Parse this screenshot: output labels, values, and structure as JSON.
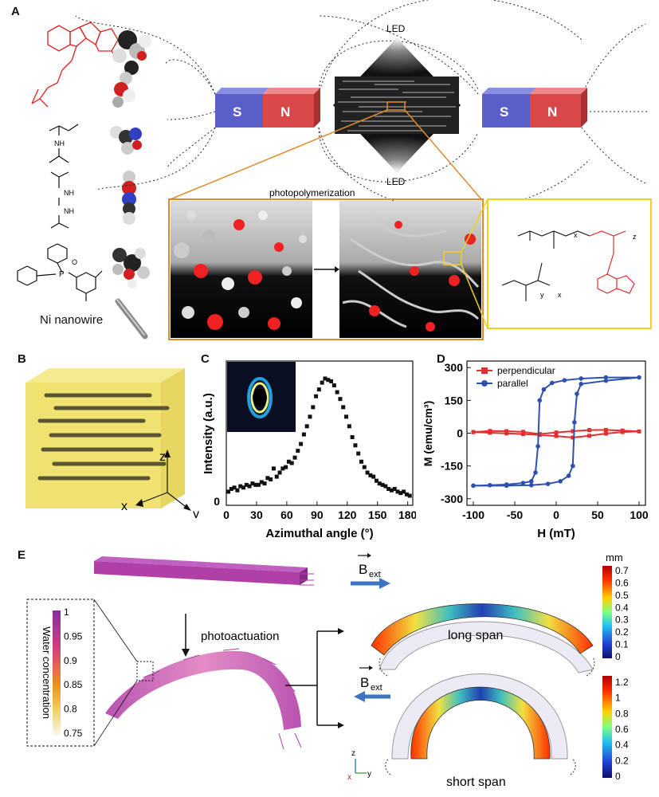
{
  "panel_labels": {
    "a": "A",
    "b": "B",
    "c": "C",
    "d": "D",
    "e": "E"
  },
  "panel_a": {
    "led_top": "LED",
    "led_bottom": "LED",
    "magnet_left": {
      "s": "S",
      "n": "N"
    },
    "magnet_right": {
      "s": "S",
      "n": "N"
    },
    "photopolymerization": "photopolymerization",
    "ni_nanowire": "Ni nanowire",
    "polymer_x1": "x",
    "polymer_z": "z",
    "polymer_y": "y",
    "polymer_x2": "x"
  },
  "panel_b": {
    "axis_z": "z",
    "axis_x": "x",
    "axis_y": "y"
  },
  "chart_data": [
    {
      "panel": "C",
      "type": "scatter",
      "xlabel": "Azimuthal angle (°)",
      "ylabel": "Intensity (a.u.)",
      "ytick_label": "0",
      "xlim": [
        0,
        185
      ],
      "ylim": [
        0,
        1
      ],
      "xticks": [
        "0",
        "30",
        "60",
        "90",
        "120",
        "150",
        "180"
      ],
      "x": [
        2,
        5,
        8,
        11,
        14,
        17,
        20,
        23,
        26,
        29,
        32,
        35,
        38,
        41,
        44,
        47,
        50,
        53,
        56,
        59,
        62,
        65,
        68,
        71,
        74,
        77,
        80,
        83,
        86,
        89,
        92,
        95,
        98,
        101,
        104,
        107,
        110,
        113,
        116,
        119,
        122,
        125,
        128,
        131,
        134,
        137,
        140,
        143,
        146,
        149,
        152,
        155,
        158,
        161,
        164,
        167,
        170,
        173,
        176,
        179,
        182
      ],
      "y": [
        0.1,
        0.12,
        0.13,
        0.11,
        0.14,
        0.13,
        0.15,
        0.14,
        0.16,
        0.15,
        0.15,
        0.17,
        0.16,
        0.2,
        0.19,
        0.27,
        0.21,
        0.24,
        0.27,
        0.28,
        0.32,
        0.31,
        0.35,
        0.4,
        0.45,
        0.52,
        0.58,
        0.65,
        0.72,
        0.8,
        0.85,
        0.9,
        0.93,
        0.92,
        0.91,
        0.88,
        0.83,
        0.78,
        0.72,
        0.65,
        0.58,
        0.5,
        0.44,
        0.38,
        0.32,
        0.28,
        0.24,
        0.22,
        0.21,
        0.18,
        0.16,
        0.15,
        0.14,
        0.12,
        0.11,
        0.12,
        0.1,
        0.09,
        0.1,
        0.08,
        0.07
      ]
    },
    {
      "panel": "D",
      "type": "line",
      "xlabel": "H (mT)",
      "ylabel": "M (emu/cm³)",
      "xlim": [
        -100,
        100
      ],
      "ylim": [
        -330,
        330
      ],
      "xticks": [
        "-100",
        "-50",
        "0",
        "50",
        "100"
      ],
      "yticks": [
        "300",
        "150",
        "0",
        "-150",
        "-300"
      ],
      "series": [
        {
          "name": "perpendicular",
          "color": "#e03030",
          "x": [
            -100,
            -80,
            -60,
            -40,
            -20,
            0,
            20,
            40,
            60,
            80,
            100,
            80,
            60,
            40,
            20,
            0,
            -20,
            -40,
            -60,
            -80,
            -100
          ],
          "y": [
            5,
            2,
            -1,
            -4,
            -8,
            -13,
            -20,
            -12,
            -2,
            5,
            8,
            12,
            15,
            14,
            9,
            3,
            -4,
            6,
            9,
            10,
            5
          ]
        },
        {
          "name": "parallel",
          "color": "#3050b0",
          "x": [
            -100,
            -80,
            -60,
            -40,
            -30,
            -25,
            -22,
            -20,
            -15,
            -5,
            10,
            30,
            60,
            100,
            60,
            30,
            25,
            22,
            20,
            15,
            5,
            -10,
            -30,
            -60,
            -100
          ],
          "y": [
            -240,
            -238,
            -235,
            -228,
            -220,
            -180,
            -60,
            150,
            200,
            230,
            242,
            250,
            255,
            255,
            240,
            225,
            180,
            50,
            -150,
            -195,
            -220,
            -232,
            -238,
            -240,
            -240
          ]
        }
      ]
    }
  ],
  "panel_e": {
    "b_ext_top": "B",
    "b_ext_top_sub": "ext",
    "b_ext_bottom": "B",
    "b_ext_bottom_sub": "ext",
    "photoactuation": "photoactuation",
    "long_span": "long span",
    "short_span": "short span",
    "water_title": "Water concentration",
    "water_ticks": [
      "1",
      "0.95",
      "0.9",
      "0.85",
      "0.8",
      "0.75"
    ],
    "mm_unit": "mm",
    "mm_ticks_top": [
      "0.7",
      "0.6",
      "0.5",
      "0.4",
      "0.3",
      "0.2",
      "0.1",
      "0"
    ],
    "mm_ticks_bottom": [
      "1.2",
      "1",
      "0.8",
      "0.6",
      "0.4",
      "0.2",
      "0"
    ],
    "axis_z": "z",
    "axis_x": "x",
    "axis_y": "y"
  },
  "colors": {
    "magnet_s": "#5a5ec8",
    "magnet_n": "#d84848",
    "accent_orange": "#e08a2a",
    "yellow_box": "#f0d020",
    "arrow_blue": "#3c74c0",
    "magenta": "#b040a8"
  }
}
